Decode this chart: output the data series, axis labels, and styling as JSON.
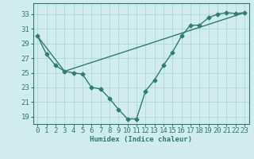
{
  "line1_x": [
    0,
    1,
    2,
    3,
    4,
    5,
    6,
    7,
    8,
    9,
    10,
    11,
    12,
    13,
    14,
    15,
    16,
    17,
    18,
    19,
    20,
    21,
    22,
    23
  ],
  "line1_y": [
    30,
    27.5,
    26,
    25.2,
    25,
    24.8,
    23,
    22.8,
    21.5,
    20,
    18.7,
    18.7,
    22.5,
    24,
    26,
    27.8,
    30,
    31.5,
    31.5,
    32.5,
    33,
    33.2,
    33.1,
    33.2
  ],
  "line2_x": [
    0,
    3,
    23
  ],
  "line2_y": [
    30,
    25.2,
    33.2
  ],
  "line_color": "#2e7d6e",
  "bg_color": "#d0ecec",
  "grid_color": "#a8d4d4",
  "xlabel": "Humidex (Indice chaleur)",
  "xlim": [
    -0.5,
    23.5
  ],
  "ylim": [
    18.0,
    34.5
  ],
  "yticks": [
    19,
    21,
    23,
    25,
    27,
    29,
    31,
    33
  ],
  "xticks": [
    0,
    1,
    2,
    3,
    4,
    5,
    6,
    7,
    8,
    9,
    10,
    11,
    12,
    13,
    14,
    15,
    16,
    17,
    18,
    19,
    20,
    21,
    22,
    23
  ],
  "marker": "D",
  "marker_size": 2.5,
  "line_width": 1.0,
  "font_size": 6.5
}
